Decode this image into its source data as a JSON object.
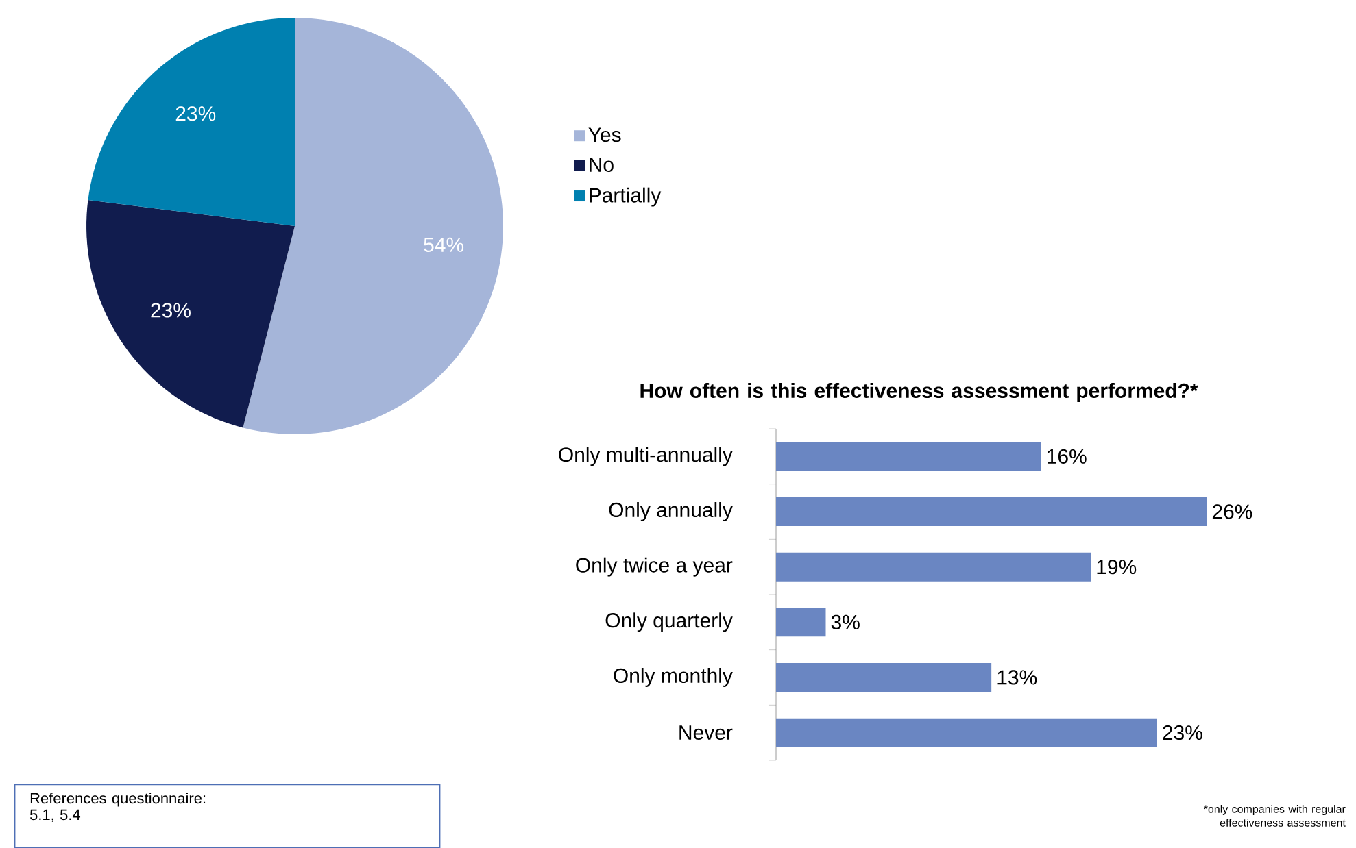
{
  "chart_data": [
    {
      "type": "pie",
      "categories": [
        "Yes",
        "No",
        "Partially"
      ],
      "values": [
        54,
        23,
        23
      ],
      "colors": [
        "#a5b5d9",
        "#111c4e",
        "#0080b0"
      ],
      "value_labels": [
        "54%",
        "23%",
        "23%"
      ],
      "legend": "right",
      "annotations": [
        "References questionnaire: 5.1, 5.4"
      ]
    },
    {
      "type": "bar",
      "orientation": "horizontal",
      "title": "How often is this effectiveness assessment performed?*",
      "categories": [
        "Only multi-annually",
        "Only annually",
        "Only twice a year",
        "Only quarterly",
        "Only monthly",
        "Never"
      ],
      "values": [
        16,
        26,
        19,
        3,
        13,
        23
      ],
      "color": "#6a86c2",
      "value_labels": [
        "16%",
        "26%",
        "19%",
        "3%",
        "13%",
        "23%"
      ],
      "annotations": [
        "*only companies with regular effectiveness assessment"
      ]
    }
  ]
}
